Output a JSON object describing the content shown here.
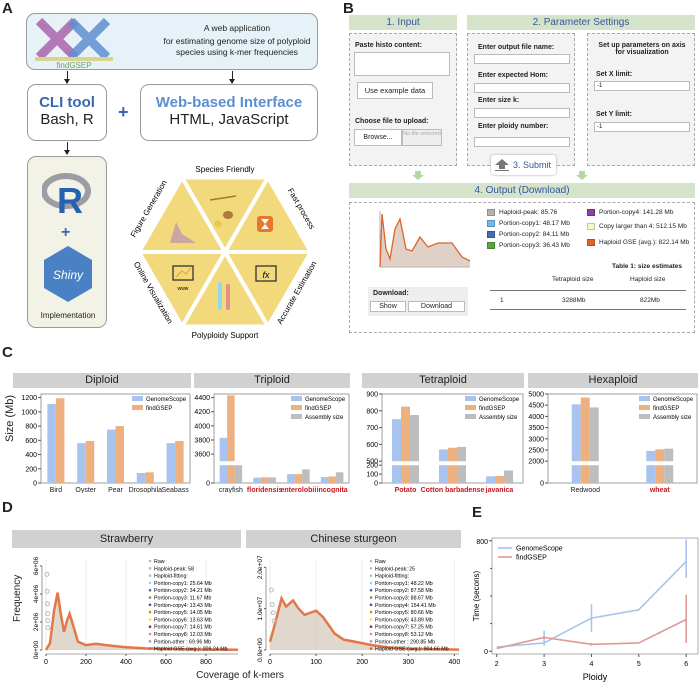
{
  "panels": {
    "a": "A",
    "b": "B",
    "c": "C",
    "d": "D",
    "e": "E"
  },
  "panel_a": {
    "logo_text": "findGSEP",
    "app_line1": "A web application",
    "app_line2": "for estimating genome size of polyploid",
    "app_line3": "species using k-mer frequencies",
    "cli_title": "CLI tool",
    "cli_sub": "Bash, R",
    "plus": "+",
    "web_title": "Web-based Interface",
    "web_sub": "HTML, JavaScript",
    "r_logo": "R",
    "shiny_logo": "Shiny",
    "implementation": "Implementation",
    "features": [
      "Species Friendly",
      "Fast process",
      "Accurate Estimation",
      "Polyploidy Support",
      "Online Visualization",
      "Figure Generation"
    ],
    "www": "www",
    "fx": "fx",
    "colors": {
      "cli": "#3a66b0",
      "web": "#5b8fd2",
      "hex": "#f1d97c",
      "accent": "#e8772e"
    }
  },
  "panel_b": {
    "input_header": "1. Input",
    "param_header": "2. Parameter Settings",
    "paste_label": "Paste histo content:",
    "paste_value": "",
    "example_button": "Use example data",
    "upload_label": "Choose file to upload:",
    "browse_button": "Browse...",
    "no_file": "No file selected",
    "output_name_label": "Enter output file name:",
    "hom_label": "Enter expected Hom:",
    "k_label": "Enter size k:",
    "ploidy_label": "Enter ploidy number:",
    "axis_title": "Set up parameters on axis for visualization",
    "xlimit_label": "Set X limit:",
    "xlimit_value": "-1",
    "ylimit_label": "Set Y limit:",
    "ylimit_value": "-1",
    "submit_button": "3. Submit",
    "output_header": "4. Output (Download)",
    "legend": [
      {
        "label": "Haploid-peak: 85.76",
        "color": "#b3b3b3"
      },
      {
        "label": "Portion-copy1: 48.17 Mb",
        "color": "#6cb8ef"
      },
      {
        "label": "Portion-copy2: 84.11 Mb",
        "color": "#3f6fb0"
      },
      {
        "label": "Portion-copy3: 36.43 Mb",
        "color": "#5aa443"
      },
      {
        "label": "Portion-copy4: 141.28 Mb",
        "color": "#8e3fa3"
      },
      {
        "label": "Copy larger than 4: 512.15 Mb",
        "color": "#fbf6c2"
      },
      {
        "label": "Haploid GSE (avg.): 822.14 Mb",
        "color": "#e0632b"
      }
    ],
    "table_title": "Table 1: size   estimates",
    "table_headers": [
      "",
      "Tetraploid size",
      "Haploid size"
    ],
    "table_row": [
      "1",
      "3288Mb",
      "822Mb"
    ],
    "download_label": "Download:",
    "show_button": "Show",
    "download_button": "Download"
  },
  "colors": {
    "genomescope": "#a7c3ee",
    "findgsep": "#eeb07f",
    "assembly": "#bdbdbd",
    "highlight_label": "#c8161d",
    "total_curve": "#e0632b"
  },
  "panel_c": {
    "ylabel": "Size (Mb)"
  },
  "panel_d": {
    "xlabel": "Coverage of k-mers",
    "ylabel": "Frequency"
  },
  "chart_data": [
    {
      "type": "bar",
      "title": "Diploid",
      "ylabel": "Size (Mb)",
      "categories": [
        "Bird",
        "Oyster",
        "Pear",
        "Drosophila",
        "Seabass"
      ],
      "highlighted": [],
      "series": [
        {
          "name": "GenomeScope",
          "values": [
            1110,
            560,
            750,
            140,
            560
          ]
        },
        {
          "name": "findGSEP",
          "values": [
            1190,
            590,
            800,
            150,
            590
          ]
        }
      ],
      "ylim": [
        0,
        1250
      ],
      "yticks": [
        0,
        200,
        400,
        600,
        800,
        1000,
        1200
      ],
      "legend": "top-right",
      "grid": false
    },
    {
      "type": "bar",
      "title": "Triploid",
      "categories": [
        "crayfish",
        "floridensis",
        "enterolobii",
        "incognita"
      ],
      "highlighted": [
        "floridensis",
        "enterolobii",
        "incognita"
      ],
      "series": [
        {
          "name": "GenomeScope",
          "values": [
            3830,
            90,
            150,
            100
          ]
        },
        {
          "name": "findGSEP",
          "values": [
            4430,
            95,
            150,
            110
          ]
        },
        {
          "name": "Assembly size",
          "values": [
            3500,
            95,
            230,
            180
          ]
        }
      ],
      "ylim_broken": [
        [
          0,
          300
        ],
        [
          3500,
          4450
        ]
      ],
      "yticks": [
        0,
        3600,
        3800,
        4000,
        4200,
        4400
      ],
      "legend": "top-right",
      "grid": false
    },
    {
      "type": "bar",
      "title": "Tetraploid",
      "categories": [
        "Potato",
        "Cotton barbadense",
        "javanica"
      ],
      "highlighted": [
        "Potato",
        "Cotton barbadense",
        "javanica"
      ],
      "series": [
        {
          "name": "GenomeScope",
          "values": [
            750,
            570,
            75
          ]
        },
        {
          "name": "findGSEP",
          "values": [
            825,
            580,
            78
          ]
        },
        {
          "name": "Assembly size",
          "values": [
            775,
            585,
            140
          ]
        }
      ],
      "ylim_broken": [
        [
          0,
          200
        ],
        [
          500,
          900
        ]
      ],
      "yticks": [
        0,
        100,
        200,
        500,
        600,
        700,
        800,
        900
      ],
      "legend": "top-right",
      "grid": false
    },
    {
      "type": "bar",
      "title": "Hexaploid",
      "categories": [
        "Redwood",
        "wheat"
      ],
      "highlighted": [
        "wheat"
      ],
      "series": [
        {
          "name": "GenomeScope",
          "values": [
            4540,
            2460
          ]
        },
        {
          "name": "findGSEP",
          "values": [
            4840,
            2530
          ]
        },
        {
          "name": "Assembly size",
          "values": [
            4400,
            2560
          ]
        }
      ],
      "ylim_broken": [
        [
          0,
          1000
        ],
        [
          2000,
          5000
        ]
      ],
      "yticks": [
        0,
        2000,
        2500,
        3000,
        3500,
        4000,
        4500,
        5000
      ],
      "legend": "top-right",
      "grid": false
    },
    {
      "type": "line",
      "title": "Strawberry",
      "xlabel": "Coverage of k-mers",
      "ylabel": "Frequency",
      "xlim": [
        0,
        960
      ],
      "ylim": [
        0,
        6500000
      ],
      "xticks": [
        0,
        200,
        400,
        600,
        800
      ],
      "yticks": [
        0,
        2000000,
        4000000,
        6000000
      ],
      "ytick_labels": [
        "0e+00",
        "2e+06",
        "4e+06",
        "6e+06"
      ],
      "raw": [
        [
          5,
          5400000
        ],
        [
          6,
          4200000
        ],
        [
          7,
          3300000
        ],
        [
          8,
          2600000
        ],
        [
          9,
          2100000
        ],
        [
          10,
          1600000
        ]
      ],
      "total_curve": [
        [
          0,
          0
        ],
        [
          20,
          500000
        ],
        [
          40,
          2800000
        ],
        [
          58,
          4100000
        ],
        [
          75,
          2500000
        ],
        [
          90,
          1300000
        ],
        [
          105,
          2100000
        ],
        [
          118,
          2600000
        ],
        [
          135,
          1800000
        ],
        [
          160,
          600000
        ],
        [
          200,
          350000
        ],
        [
          250,
          450000
        ],
        [
          300,
          350000
        ],
        [
          400,
          200000
        ],
        [
          500,
          120000
        ],
        [
          700,
          50000
        ],
        [
          960,
          20000
        ]
      ],
      "legend": [
        "Raw",
        "Haploid-peak: 58",
        "Haploid-fitting:",
        "Portion-copy1: 25.64 Mb",
        "Portion-copy2: 34.21 Mb",
        "Portion-copy3: 11.67 Mb",
        "Portion-copy4: 13.43 Mb",
        "Portion-copy5: 14.05 Mb",
        "Portion-copy6: 13.63 Mb",
        "Portion-copy7: 14.61 Mb",
        "Portion-copy8: 12.03 Mb",
        "Portion-other : 69.96 Mb",
        "Haploid GSE (avg.): 209.24 Mb"
      ],
      "legend_colors": [
        "#bbbbbb",
        "#bbbbbb",
        "#bbbbbb",
        "#8fd8e8",
        "#3f6fb0",
        "#5aa443",
        "#6a3fa3",
        "#e0832b",
        "#f5e23a",
        "#6b4a1a",
        "#e37fc0",
        "#a0a0a0",
        "#e0632b"
      ],
      "legend_position": "top-right"
    },
    {
      "type": "line",
      "title": "Chinese sturgeon",
      "xlabel": "Coverage of k-mers",
      "xlim": [
        0,
        410
      ],
      "ylim": [
        0,
        22000000
      ],
      "xticks": [
        0,
        100,
        200,
        300,
        400
      ],
      "yticks": [
        0,
        10000000,
        20000000
      ],
      "ytick_labels": [
        "0.0e+00",
        "1.0e+07",
        "2.0e+07"
      ],
      "raw": [
        [
          3,
          14500000
        ],
        [
          5,
          11000000
        ],
        [
          7,
          9000000
        ],
        [
          9,
          7000000
        ]
      ],
      "total_curve": [
        [
          0,
          2000000
        ],
        [
          10,
          6000000
        ],
        [
          25,
          12500000
        ],
        [
          35,
          10500000
        ],
        [
          50,
          12000000
        ],
        [
          62,
          10000000
        ],
        [
          75,
          8500000
        ],
        [
          100,
          9500000
        ],
        [
          115,
          8000000
        ],
        [
          140,
          4000000
        ],
        [
          160,
          2500000
        ],
        [
          185,
          2000000
        ],
        [
          220,
          1200000
        ],
        [
          260,
          600000
        ],
        [
          300,
          300000
        ],
        [
          410,
          100000
        ]
      ],
      "legend": [
        "Raw",
        "Haploid-peak: 25",
        "Haploid-fitting:",
        "Portion-copy1: 48.22 Mb",
        "Portion-copy2: 87.58 Mb",
        "Portion-copy3: 88.67 Mb",
        "Portion-copy4: 154.41 Mb",
        "Portion-copy5: 80.66 Mb",
        "Portion-copy6: 43.89 Mb",
        "Portion-copy7: 57.25 Mb",
        "Portion-copy8: 53.12 Mb",
        "Portion-other : 290.85 Mb",
        "Haploid GSE (avg.): 904.66 Mb"
      ],
      "legend_colors": [
        "#bbbbbb",
        "#bbbbbb",
        "#bbbbbb",
        "#8fd8e8",
        "#3f6fb0",
        "#5aa443",
        "#6a3fa3",
        "#e0832b",
        "#f5e23a",
        "#6b4a1a",
        "#e37fc0",
        "#a0a0a0",
        "#e0632b"
      ],
      "legend_position": "top-right"
    },
    {
      "type": "line",
      "xlabel": "Ploidy",
      "ylabel": "Time  (secons)",
      "x": [
        2,
        3,
        4,
        5,
        6
      ],
      "xlim": [
        1.9,
        6.25
      ],
      "ylim": [
        -20,
        820
      ],
      "yticks": [
        0,
        800
      ],
      "minor_yticks": [
        200,
        400,
        600
      ],
      "series": [
        {
          "name": "GenomeScope",
          "color": "#a7c3ee",
          "values": [
            30,
            60,
            240,
            300,
            650
          ],
          "error": [
            [
              30,
              30
            ],
            [
              40,
              150
            ],
            [
              140,
              340
            ],
            [
              300,
              300
            ],
            [
              530,
              810
            ]
          ]
        },
        {
          "name": "findGSEP",
          "color": "#e09a96",
          "values": [
            20,
            100,
            50,
            60,
            230
          ],
          "error": [
            [
              20,
              20
            ],
            [
              90,
              110
            ],
            [
              40,
              60
            ],
            [
              60,
              60
            ],
            [
              60,
              410
            ]
          ]
        }
      ],
      "legend": "top-left",
      "grid": false
    }
  ]
}
